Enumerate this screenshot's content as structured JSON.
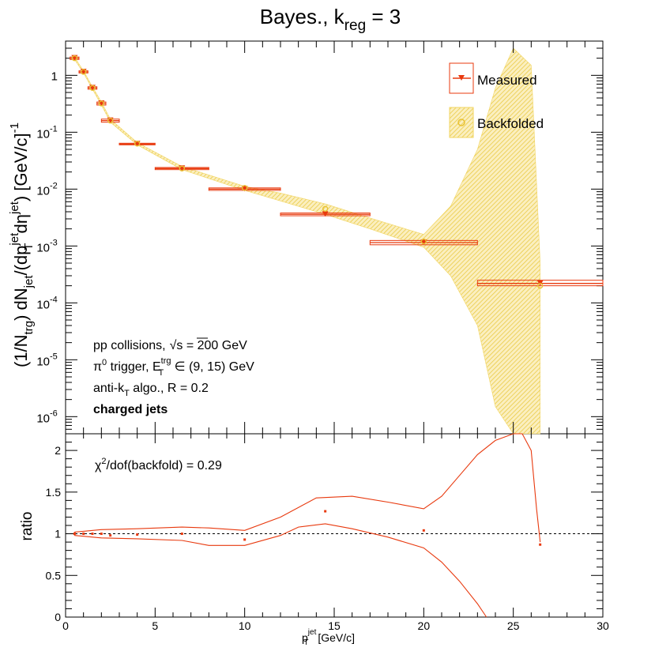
{
  "title_main": "Bayes., k",
  "title_sub": "reg",
  "title_tail": " = 3",
  "legend": {
    "measured": "Measured",
    "backfolded": "Backfolded"
  },
  "annotations": {
    "line1": "pp collisions,",
    "line1_sqrt": "√s",
    "line1_tail": " = 200 GeV",
    "line2_pi": "π",
    "line2_sup0": "0",
    "line2_mid": " trigger, E",
    "line2_supTrg": "trg",
    "line2_subT": "T",
    "line2_tail": " ∈ (9, 15) GeV",
    "line3_head": "anti-k",
    "line3_subT": "T",
    "line3_tail": " algo., R = 0.2",
    "line4": "charged jets"
  },
  "chi2": {
    "head": "χ",
    "sup": "2",
    "tail": "/dof(backfold) = 0.29"
  },
  "axes": {
    "top_ylabel": "(1/N_trg) dN_jet/(dp_T^jet dη^jet) [GeV/c]^-1",
    "bottom_ylabel": "ratio",
    "xlabel_main": "p",
    "xlabel_sup": "jet",
    "xlabel_sub": "T",
    "xlabel_unit": " [GeV/c]"
  },
  "colors": {
    "measured": "#e8390e",
    "backfolded": "#e9c232",
    "band": "#f2d561",
    "ratio_line": "#e8390e"
  },
  "chart_data": [
    {
      "type": "scatter",
      "yscale": "log",
      "xlim": [
        0,
        30
      ],
      "ylim": [
        5e-07,
        4
      ],
      "yticks": [
        "10^-6",
        "10^-5",
        "10^-4",
        "10^-3",
        "10^-2",
        "10^-1",
        "1"
      ],
      "series": [
        {
          "name": "Measured",
          "x": [
            0.5,
            1.0,
            1.5,
            2.0,
            2.5,
            4.0,
            6.5,
            10.0,
            14.5,
            20.0,
            26.5
          ],
          "x_err": [
            0.25,
            0.25,
            0.25,
            0.25,
            0.5,
            1.0,
            1.5,
            2.0,
            2.5,
            3.0,
            3.5
          ],
          "y": [
            2.0,
            1.15,
            0.6,
            0.32,
            0.16,
            0.062,
            0.023,
            0.01,
            0.0036,
            0.00115,
            0.00022
          ],
          "y_low": [
            1.9,
            1.1,
            0.57,
            0.3,
            0.15,
            0.06,
            0.022,
            0.0095,
            0.0034,
            0.00105,
            0.0002
          ],
          "y_high": [
            2.1,
            1.2,
            0.63,
            0.34,
            0.17,
            0.064,
            0.024,
            0.0105,
            0.0038,
            0.00125,
            0.00025
          ]
        },
        {
          "name": "Backfolded",
          "x": [
            0.5,
            1.0,
            1.5,
            2.0,
            2.5,
            4.0,
            6.5,
            10.0,
            14.5,
            20.0,
            26.5
          ],
          "y": [
            2.0,
            1.15,
            0.6,
            0.32,
            0.16,
            0.063,
            0.023,
            0.0105,
            0.0045,
            0.0012,
            0.0002
          ],
          "band_x": [
            0.5,
            1.0,
            1.5,
            2.0,
            2.5,
            4.0,
            6.5,
            10.0,
            12.0,
            14.5,
            17.0,
            20.0,
            21.5,
            23.0,
            24.0,
            25.0,
            26.0,
            26.5
          ],
          "band_low": [
            1.9,
            1.1,
            0.57,
            0.3,
            0.15,
            0.06,
            0.022,
            0.0095,
            0.0062,
            0.0036,
            0.002,
            0.00095,
            0.0003,
            4e-05,
            1.5e-06,
            5e-07,
            5e-07,
            5e-07
          ],
          "band_high": [
            2.1,
            1.2,
            0.63,
            0.34,
            0.17,
            0.066,
            0.025,
            0.0112,
            0.0085,
            0.0055,
            0.0031,
            0.0016,
            0.005,
            0.05,
            0.6,
            3.0,
            1.5,
            0.0005
          ]
        }
      ]
    },
    {
      "type": "line",
      "xlim": [
        0,
        30
      ],
      "ylim": [
        0,
        2.2
      ],
      "xticks": [
        0,
        5,
        10,
        15,
        20,
        25,
        30
      ],
      "yticks": [
        0,
        0.5,
        1,
        1.5,
        2
      ],
      "reference_line": 1.0,
      "points": {
        "x": [
          0.5,
          1.0,
          1.5,
          2.0,
          2.5,
          4.0,
          6.5,
          10.0,
          14.5,
          20.0,
          26.5
        ],
        "y": [
          1.0,
          1.0,
          1.0,
          1.0,
          0.98,
          0.99,
          1.0,
          0.93,
          1.27,
          1.04,
          0.87
        ]
      },
      "upper": {
        "x": [
          0.5,
          1.0,
          2.0,
          4.0,
          6.5,
          8.0,
          10.0,
          12.0,
          14.0,
          16.0,
          18.0,
          20.0,
          21.0,
          22.0,
          23.0,
          24.0,
          25.0,
          25.5,
          26.0,
          26.3,
          26.5
        ],
        "y": [
          1.02,
          1.03,
          1.05,
          1.06,
          1.08,
          1.07,
          1.04,
          1.2,
          1.43,
          1.45,
          1.38,
          1.3,
          1.45,
          1.7,
          1.95,
          2.12,
          2.2,
          2.2,
          2.0,
          1.3,
          0.9
        ]
      },
      "lower": {
        "x": [
          0.5,
          1.0,
          2.0,
          4.0,
          6.5,
          8.0,
          10.0,
          12.0,
          13.0,
          14.5,
          16.0,
          18.0,
          20.0,
          21.0,
          22.0,
          23.0,
          23.5
        ],
        "y": [
          0.98,
          0.97,
          0.95,
          0.94,
          0.92,
          0.86,
          0.86,
          0.98,
          1.08,
          1.12,
          1.06,
          0.96,
          0.83,
          0.66,
          0.43,
          0.16,
          0.0
        ]
      }
    }
  ]
}
